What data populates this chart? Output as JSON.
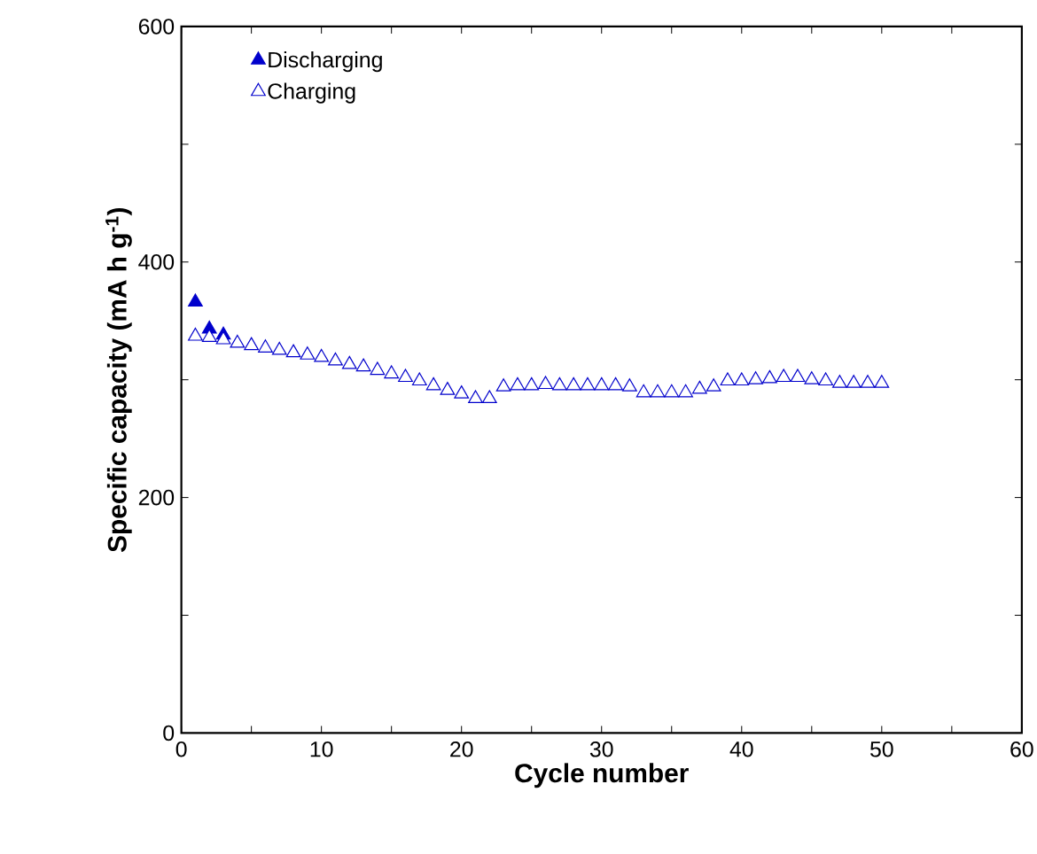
{
  "chart_data": {
    "type": "scatter",
    "xlabel": "Cycle number",
    "ylabel": "Specific capacity (mA h g$^{-1}$)",
    "x": [
      1,
      2,
      3,
      4,
      5,
      6,
      7,
      8,
      9,
      10,
      11,
      12,
      13,
      14,
      15,
      16,
      17,
      18,
      19,
      20,
      21,
      22,
      23,
      24,
      25,
      26,
      27,
      28,
      29,
      30,
      31,
      32,
      33,
      34,
      35,
      36,
      37,
      38,
      39,
      40,
      41,
      42,
      43,
      44,
      45,
      46,
      47,
      48,
      49,
      50
    ],
    "series": [
      {
        "name": "Discharging",
        "color": "#0000cc",
        "marker": "triangle",
        "values": [
          366,
          343,
          338,
          null,
          null,
          null,
          null,
          null,
          null,
          null,
          null,
          null,
          null,
          null,
          null,
          null,
          null,
          null,
          null,
          null,
          null,
          null,
          null,
          null,
          null,
          null,
          null,
          null,
          null,
          null,
          null,
          null,
          null,
          null,
          null,
          null,
          null,
          null,
          null,
          null,
          null,
          null,
          null,
          null,
          null,
          null,
          null,
          null,
          null,
          null
        ]
      },
      {
        "name": "Charging",
        "color": "#0000cc",
        "marker": "triangle",
        "values": [
          337,
          336,
          334,
          331,
          329,
          327,
          325,
          323,
          321,
          319,
          316,
          313,
          311,
          308,
          305,
          302,
          299,
          295,
          291,
          288,
          284,
          284,
          294,
          295,
          295,
          296,
          295,
          295,
          295,
          295,
          295,
          294,
          289,
          289,
          289,
          289,
          292,
          294,
          299,
          299,
          300,
          301,
          302,
          302,
          300,
          299,
          297,
          297,
          297,
          297
        ]
      }
    ],
    "xlim": [
      0,
      60
    ],
    "ylim": [
      0,
      600
    ],
    "xticks": [
      0,
      10,
      20,
      30,
      40,
      50,
      60,
      {
        "value": 5,
        "label": null
      },
      {
        "value": 15,
        "label": null
      },
      {
        "value": 25,
        "label": null
      },
      {
        "value": 35,
        "label": null
      },
      {
        "value": 45,
        "label": null
      },
      {
        "value": 55,
        "label": null
      }
    ],
    "yticks": [
      0,
      200,
      400,
      600,
      {
        "value": 100,
        "label": null
      },
      {
        "value": 300,
        "label": null
      },
      {
        "value": 500,
        "label": null
      }
    ],
    "legend": "top left",
    "grid": false
  }
}
